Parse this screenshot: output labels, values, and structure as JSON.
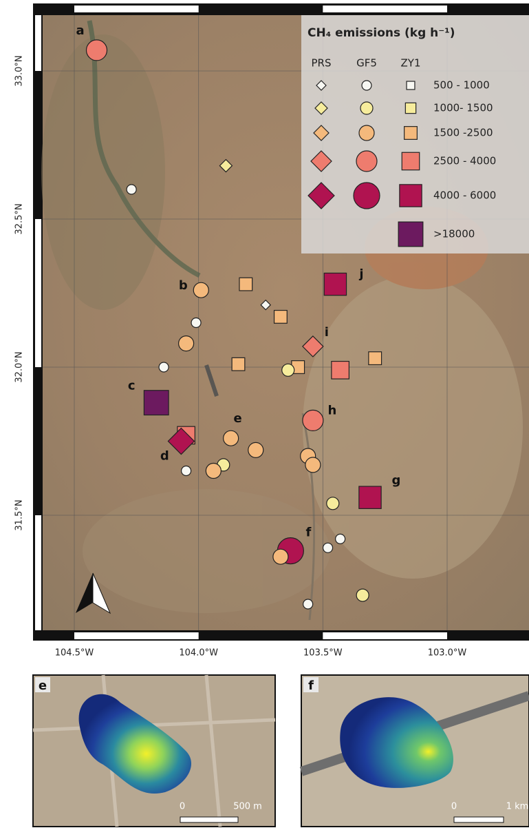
{
  "map": {
    "lat_ticks": [
      {
        "value": 33.0,
        "label": "33.0°N"
      },
      {
        "value": 32.5,
        "label": "32.5°N"
      },
      {
        "value": 32.0,
        "label": "32.0°N"
      },
      {
        "value": 31.5,
        "label": "31.5°N"
      }
    ],
    "lon_ticks": [
      {
        "value": -104.5,
        "label": "104.5°W"
      },
      {
        "value": -104.0,
        "label": "104.0°W"
      },
      {
        "value": -103.5,
        "label": "103.5°W"
      },
      {
        "value": -103.0,
        "label": "103.0°W"
      }
    ],
    "points": [
      {
        "lon": -104.41,
        "lat": 33.07,
        "sensor": "GF5",
        "class": 3,
        "label": "a"
      },
      {
        "lon": -103.89,
        "lat": 32.68,
        "sensor": "PRS",
        "class": 1
      },
      {
        "lon": -104.27,
        "lat": 32.6,
        "sensor": "GF5",
        "class": 0
      },
      {
        "lon": -103.99,
        "lat": 32.26,
        "sensor": "GF5",
        "class": 2,
        "label": "b"
      },
      {
        "lon": -103.81,
        "lat": 32.28,
        "sensor": "ZY1",
        "class": 2
      },
      {
        "lon": -103.73,
        "lat": 32.21,
        "sensor": "PRS",
        "class": 0
      },
      {
        "lon": -103.67,
        "lat": 32.17,
        "sensor": "ZY1",
        "class": 2
      },
      {
        "lon": -103.45,
        "lat": 32.28,
        "sensor": "ZY1",
        "class": 4,
        "label": "j"
      },
      {
        "lon": -104.01,
        "lat": 32.15,
        "sensor": "GF5",
        "class": 0
      },
      {
        "lon": -104.05,
        "lat": 32.08,
        "sensor": "GF5",
        "class": 2
      },
      {
        "lon": -103.54,
        "lat": 32.07,
        "sensor": "PRS",
        "class": 3,
        "label": "i"
      },
      {
        "lon": -103.84,
        "lat": 32.01,
        "sensor": "ZY1",
        "class": 2
      },
      {
        "lon": -103.6,
        "lat": 32.0,
        "sensor": "ZY1",
        "class": 2
      },
      {
        "lon": -103.64,
        "lat": 31.99,
        "sensor": "GF5",
        "class": 1
      },
      {
        "lon": -103.43,
        "lat": 31.99,
        "sensor": "ZY1",
        "class": 3
      },
      {
        "lon": -103.29,
        "lat": 32.03,
        "sensor": "ZY1",
        "class": 2
      },
      {
        "lon": -104.14,
        "lat": 32.0,
        "sensor": "GF5",
        "class": 0
      },
      {
        "lon": -104.17,
        "lat": 31.88,
        "sensor": "ZY1",
        "class": 5,
        "label": "c"
      },
      {
        "lon": -104.05,
        "lat": 31.77,
        "sensor": "ZY1",
        "class": 3
      },
      {
        "lon": -104.07,
        "lat": 31.75,
        "sensor": "PRS",
        "class": 4,
        "label": "d"
      },
      {
        "lon": -103.87,
        "lat": 31.76,
        "sensor": "GF5",
        "class": 2,
        "label": "e"
      },
      {
        "lon": -103.77,
        "lat": 31.72,
        "sensor": "GF5",
        "class": 2
      },
      {
        "lon": -103.9,
        "lat": 31.67,
        "sensor": "GF5",
        "class": 1
      },
      {
        "lon": -103.94,
        "lat": 31.65,
        "sensor": "GF5",
        "class": 2
      },
      {
        "lon": -104.05,
        "lat": 31.65,
        "sensor": "GF5",
        "class": 0
      },
      {
        "lon": -103.54,
        "lat": 31.82,
        "sensor": "GF5",
        "class": 3,
        "label": "h"
      },
      {
        "lon": -103.56,
        "lat": 31.7,
        "sensor": "GF5",
        "class": 2
      },
      {
        "lon": -103.54,
        "lat": 31.67,
        "sensor": "GF5",
        "class": 2
      },
      {
        "lon": -103.31,
        "lat": 31.56,
        "sensor": "ZY1",
        "class": 4,
        "label": "g"
      },
      {
        "lon": -103.46,
        "lat": 31.54,
        "sensor": "GF5",
        "class": 1
      },
      {
        "lon": -103.63,
        "lat": 31.38,
        "sensor": "GF5",
        "class": 4,
        "label": "f"
      },
      {
        "lon": -103.67,
        "lat": 31.36,
        "sensor": "GF5",
        "class": 2
      },
      {
        "lon": -103.48,
        "lat": 31.39,
        "sensor": "GF5",
        "class": 0
      },
      {
        "lon": -103.43,
        "lat": 31.42,
        "sensor": "GF5",
        "class": 0
      },
      {
        "lon": -103.34,
        "lat": 31.23,
        "sensor": "GF5",
        "class": 1
      },
      {
        "lon": -103.56,
        "lat": 31.2,
        "sensor": "GF5",
        "class": 0
      }
    ]
  },
  "legend": {
    "title": "CH₄ emissions (kg h⁻¹)",
    "sensors": [
      "PRS",
      "GF5",
      "ZY1"
    ],
    "classes": [
      {
        "label": "500 - 1000",
        "color": "#f7f7f2"
      },
      {
        "label": "1000- 1500",
        "color": "#f6ec9c"
      },
      {
        "label": "1500 -2500",
        "color": "#f4b97c"
      },
      {
        "label": "2500 - 4000",
        "color": "#ee7c6e"
      },
      {
        "label": "4000 - 6000",
        "color": "#b01350"
      },
      {
        "label": ">18000",
        "color": "#6c1a5f"
      }
    ]
  },
  "insets": [
    {
      "label": "e",
      "scale": [
        "0",
        "500 m"
      ]
    },
    {
      "label": "f",
      "scale": [
        "0",
        "1 km"
      ]
    }
  ]
}
